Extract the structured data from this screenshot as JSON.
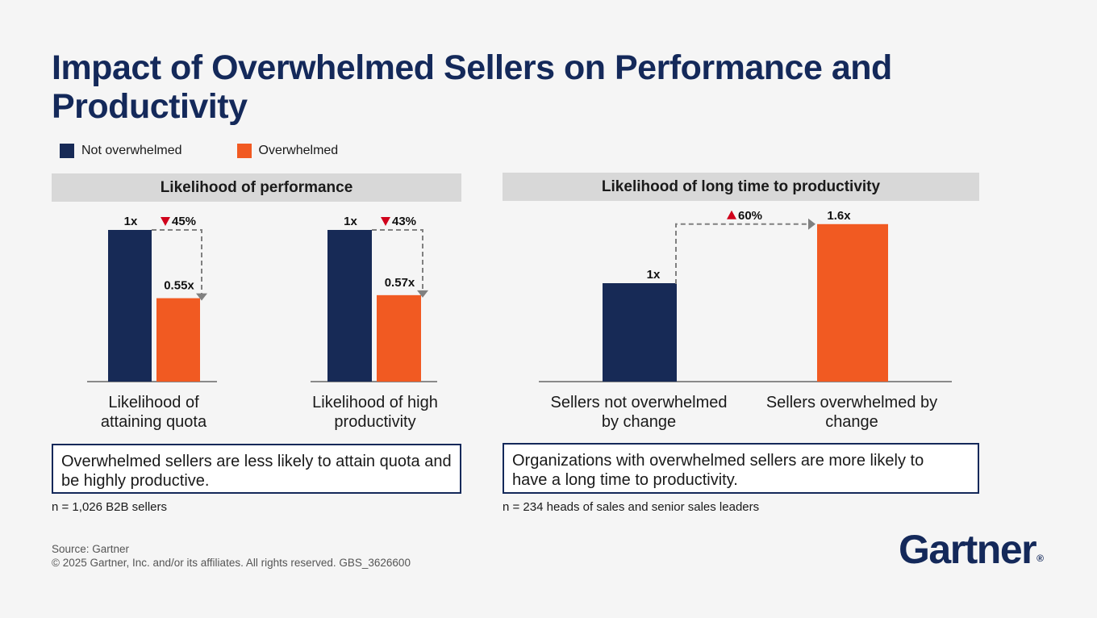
{
  "title": "Impact of Overwhelmed Sellers on Performance and Productivity",
  "legend": [
    {
      "label": "Not overwhelmed",
      "color": "#172a56"
    },
    {
      "label": "Overwhelmed",
      "color": "#f15a22"
    }
  ],
  "panels": {
    "left": {
      "header": "Likelihood of performance",
      "note": "Overwhelmed sellers are less likely to attain quota and be highly productive.",
      "sample": "n = 1,026 B2B sellers"
    },
    "right": {
      "header": "Likelihood of long time to productivity",
      "note": "Organizations with overwhelmed sellers are more likely to have a long time to productivity.",
      "sample": "n = 234 heads of sales and senior sales leaders"
    }
  },
  "chart_data": [
    {
      "type": "bar",
      "title": "Likelihood of performance",
      "categories": [
        "Likelihood of attaining quota",
        "Likelihood of high productivity"
      ],
      "series": [
        {
          "name": "Not overwhelmed",
          "values": [
            1.0,
            1.0
          ],
          "labels": [
            "1x",
            "1x"
          ],
          "color": "#172a56"
        },
        {
          "name": "Overwhelmed",
          "values": [
            0.55,
            0.57
          ],
          "labels": [
            "0.55x",
            "0.57x"
          ],
          "color": "#f15a22"
        }
      ],
      "changes": [
        {
          "direction": "down",
          "label": "45%"
        },
        {
          "direction": "down",
          "label": "43%"
        }
      ],
      "ylim": [
        0,
        1.0
      ]
    },
    {
      "type": "bar",
      "title": "Likelihood of long time to productivity",
      "categories": [
        "Sellers not overwhelmed by change",
        "Sellers overwhelmed by change"
      ],
      "values": [
        1.0,
        1.6
      ],
      "labels": [
        "1x",
        "1.6x"
      ],
      "colors": [
        "#172a56",
        "#f15a22"
      ],
      "change": {
        "direction": "up",
        "label": "60%"
      },
      "ylim": [
        0,
        1.6
      ]
    }
  ],
  "footer": {
    "source": "Source: Gartner",
    "copyright": "© 2025 Gartner, Inc. and/or its affiliates. All rights reserved. GBS_3626600"
  },
  "logo": {
    "text": "Gartner",
    "mark": "®"
  }
}
